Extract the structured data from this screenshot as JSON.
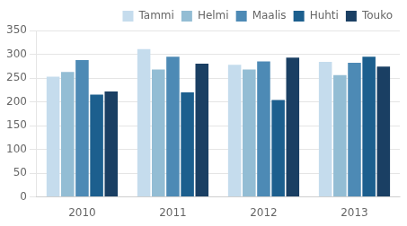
{
  "chart_data": {
    "type": "bar",
    "categories": [
      "2010",
      "2011",
      "2012",
      "2013"
    ],
    "series": [
      {
        "name": "Tammi",
        "color": "#c5dced",
        "values": [
          253,
          311,
          278,
          284
        ]
      },
      {
        "name": "Helmi",
        "color": "#93bdd4",
        "values": [
          263,
          268,
          268,
          256
        ]
      },
      {
        "name": "Maalis",
        "color": "#4d8ab5",
        "values": [
          288,
          295,
          285,
          282
        ]
      },
      {
        "name": "Huhti",
        "color": "#1c5f8e",
        "values": [
          215,
          220,
          204,
          295
        ]
      },
      {
        "name": "Touko",
        "color": "#1a3f63",
        "values": [
          222,
          280,
          293,
          274
        ]
      }
    ],
    "ylim": [
      0,
      350
    ],
    "yticks": [
      0,
      50,
      100,
      150,
      200,
      250,
      300,
      350
    ],
    "grid": true,
    "legend": "upper right"
  }
}
